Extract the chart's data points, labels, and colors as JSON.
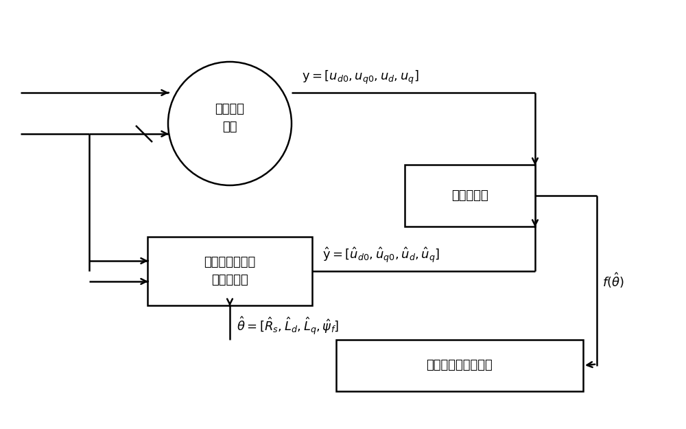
{
  "bg_color": "#ffffff",
  "line_color": "#000000",
  "figsize": [
    10.0,
    6.25
  ],
  "dpi": 100,
  "motor_label": "永磁同步\n电机",
  "fitness_label": "适应度函数",
  "model_label": "永磁同步电机参\n数辨识模型",
  "ssa_label": "改进的樽海鞘群算法",
  "y_label": "$\\mathrm{y}=[u_{d0},u_{q0},u_{d},u_{q}]$",
  "yhat_label": "$\\hat{\\mathrm{y}}=[\\hat{u}_{d0},\\hat{u}_{q0},\\hat{u}_{d},\\hat{u}_{q}]$",
  "theta_label": "$\\hat{\\theta}=[\\hat{R}_{s},\\hat{L}_{d},\\hat{L}_{q},\\hat{\\psi}_{f}]$",
  "ftheta_label": "$f(\\hat{\\theta})$"
}
